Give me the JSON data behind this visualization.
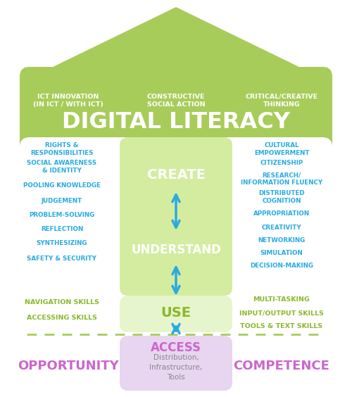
{
  "bg_color": "#ffffff",
  "green_color": "#a8cc5a",
  "light_green_color": "#d4eca0",
  "lighter_green_color": "#e6f5cc",
  "cyan_color": "#29abe2",
  "purple_color": "#cc66cc",
  "light_purple_color": "#e8d5f0",
  "olive_text": "#8ab82a",
  "white": "#ffffff",
  "title_main": "DIGITAL LITERACY",
  "subtitle_left": "ICT INNOVATION\n(IN ICT / WITH ICT)",
  "subtitle_center": "CONSTRUCTIVE\nSOCIAL ACTION",
  "subtitle_right": "CRITICAL/CREATIVE\nTHINKING",
  "left_col_items": [
    "RIGHTS &\nRESPONSIBILITIES",
    "SOCIAL AWARENESS\n& IDENTITY",
    "POOLING KNOWLEDGE",
    "JUDGEMENT",
    "PROBLEM-SOLVING",
    "REFLECTION",
    "SYNTHESIZING",
    "SAFETY & SECURITY"
  ],
  "right_col_items": [
    "CULTURAL\nEMPOWERMENT",
    "CITIZENSHIP",
    "RESEARCH/\nINFORMATION FLUENCY",
    "DISTRIBUTED\nCOGNITION",
    "APPROPRIATION",
    "CREATIVITY",
    "NETWORKING",
    "SIMULATION",
    "DECISION-MAKING"
  ],
  "left_bottom_items": [
    "NAVIGATION SKILLS",
    "ACCESSING SKILLS"
  ],
  "right_bottom_items": [
    "MULTI-TASKING",
    "INPUT/OUTPUT SKILLS",
    "TOOLS & TEXT SKILLS"
  ],
  "center_top_label": "CREATE",
  "center_mid_label": "UNDERSTAND",
  "center_bot_label": "USE",
  "access_label": "ACCESS",
  "access_sub": "Distribution,\nInfrastructure,\nTools",
  "opportunity_label": "OPPORTUNITY",
  "competence_label": "COMPETENCE"
}
